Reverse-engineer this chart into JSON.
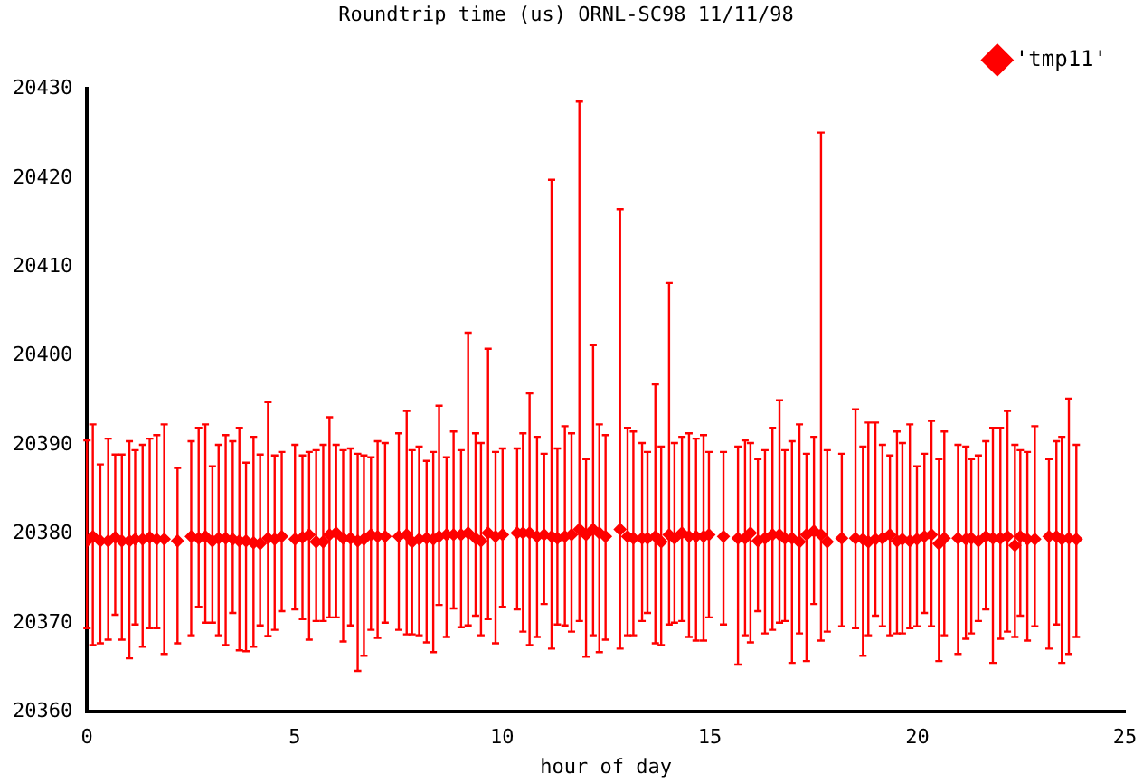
{
  "chart_data": {
    "type": "scatter",
    "title": "Roundtrip time (us) ORNL-SC98 11/11/98",
    "xlabel": "hour of day",
    "xlim": [
      0,
      25
    ],
    "xticks": [
      0,
      5,
      10,
      15,
      20,
      25
    ],
    "ylim": [
      20360,
      20430
    ],
    "yticks": [
      20360,
      20370,
      20380,
      20390,
      20400,
      20410,
      20420,
      20430
    ],
    "grid": false,
    "legend": "top right",
    "marker": "diamond",
    "series": [
      {
        "name": "'tmp11'",
        "color": "#ff0000",
        "x": [
          0.0,
          0.14,
          0.32,
          0.51,
          0.68,
          0.84,
          1.02,
          1.16,
          1.34,
          1.51,
          1.68,
          1.86,
          2.18,
          2.51,
          2.69,
          2.85,
          3.02,
          3.17,
          3.34,
          3.51,
          3.67,
          3.83,
          4.01,
          4.17,
          4.36,
          4.52,
          4.69,
          5.01,
          5.19,
          5.35,
          5.52,
          5.69,
          5.84,
          6.0,
          6.17,
          6.35,
          6.52,
          6.67,
          6.84,
          7.0,
          7.18,
          7.51,
          7.7,
          7.83,
          8.0,
          8.18,
          8.34,
          8.48,
          8.66,
          8.83,
          9.01,
          9.18,
          9.36,
          9.49,
          9.66,
          9.84,
          10.01,
          10.36,
          10.5,
          10.66,
          10.84,
          11.01,
          11.19,
          11.33,
          11.51,
          11.67,
          11.86,
          12.02,
          12.19,
          12.34,
          12.49,
          12.84,
          13.02,
          13.16,
          13.37,
          13.5,
          13.69,
          13.83,
          14.02,
          14.15,
          14.33,
          14.5,
          14.67,
          14.85,
          14.98,
          15.33,
          15.68,
          15.85,
          15.98,
          16.16,
          16.33,
          16.51,
          16.68,
          16.81,
          16.98,
          17.16,
          17.33,
          17.51,
          17.68,
          17.83,
          18.18,
          18.51,
          18.69,
          18.82,
          18.99,
          19.16,
          19.34,
          19.51,
          19.64,
          19.82,
          19.99,
          20.17,
          20.34,
          20.52,
          20.65,
          20.98,
          21.17,
          21.3,
          21.47,
          21.65,
          21.82,
          22.0,
          22.17,
          22.35,
          22.48,
          22.65,
          22.83,
          23.17,
          23.35,
          23.48,
          23.65,
          23.83
        ],
        "values": [
          20379.2,
          20379.7,
          20379.2,
          20379.2,
          20379.6,
          20379.2,
          20379.2,
          20379.4,
          20379.4,
          20379.6,
          20379.4,
          20379.4,
          20379.2,
          20379.7,
          20379.5,
          20379.7,
          20379.2,
          20379.5,
          20379.5,
          20379.4,
          20379.2,
          20379.2,
          20379.0,
          20378.9,
          20379.5,
          20379.4,
          20379.7,
          20379.4,
          20379.6,
          20379.9,
          20379.1,
          20379.1,
          20379.9,
          20380.1,
          20379.5,
          20379.5,
          20379.2,
          20379.4,
          20379.9,
          20379.7,
          20379.7,
          20379.7,
          20379.9,
          20379.1,
          20379.4,
          20379.5,
          20379.4,
          20379.7,
          20379.9,
          20379.9,
          20379.9,
          20380.1,
          20379.5,
          20379.2,
          20380.1,
          20379.7,
          20379.9,
          20380.1,
          20380.1,
          20380.1,
          20379.7,
          20379.9,
          20379.7,
          20379.5,
          20379.7,
          20379.9,
          20380.5,
          20379.9,
          20380.5,
          20380.1,
          20379.7,
          20380.5,
          20379.7,
          20379.5,
          20379.5,
          20379.5,
          20379.7,
          20379.1,
          20379.9,
          20379.5,
          20380.1,
          20379.7,
          20379.7,
          20379.7,
          20379.9,
          20379.7,
          20379.5,
          20379.5,
          20380.1,
          20379.2,
          20379.5,
          20379.9,
          20379.9,
          20379.5,
          20379.5,
          20379.1,
          20379.9,
          20380.3,
          20379.9,
          20379.1,
          20379.5,
          20379.5,
          20379.4,
          20379.1,
          20379.4,
          20379.5,
          20379.9,
          20379.2,
          20379.4,
          20379.2,
          20379.4,
          20379.7,
          20379.9,
          20378.9,
          20379.5,
          20379.5,
          20379.4,
          20379.5,
          20379.2,
          20379.7,
          20379.5,
          20379.5,
          20379.7,
          20378.7,
          20379.7,
          20379.4,
          20379.4,
          20379.7,
          20379.7,
          20379.4,
          20379.5,
          20379.4
        ],
        "errors": [
          [
            20369.4,
            20390.5
          ],
          [
            20367.5,
            20392.3
          ],
          [
            20367.7,
            20387.8
          ],
          [
            20368.1,
            20390.7
          ],
          [
            20370.9,
            20388.9
          ],
          [
            20368.1,
            20388.9
          ],
          [
            20366.0,
            20390.4
          ],
          [
            20369.8,
            20389.4
          ],
          [
            20367.3,
            20390.0
          ],
          [
            20369.4,
            20390.7
          ],
          [
            20369.4,
            20391.1
          ],
          [
            20366.5,
            20392.3
          ],
          [
            20367.7,
            20387.4
          ],
          [
            20368.6,
            20390.4
          ],
          [
            20371.8,
            20391.9
          ],
          [
            20370.0,
            20392.3
          ],
          [
            20370.0,
            20387.6
          ],
          [
            20368.6,
            20390.0
          ],
          [
            20367.5,
            20391.1
          ],
          [
            20371.1,
            20390.4
          ],
          [
            20366.9,
            20391.9
          ],
          [
            20366.8,
            20388.0
          ],
          [
            20367.3,
            20390.9
          ],
          [
            20369.7,
            20388.9
          ],
          [
            20368.5,
            20394.8
          ],
          [
            20369.2,
            20388.8
          ],
          [
            20371.3,
            20389.2
          ],
          [
            20371.5,
            20390.0
          ],
          [
            20370.4,
            20388.8
          ],
          [
            20368.1,
            20389.2
          ],
          [
            20370.2,
            20389.4
          ],
          [
            20370.2,
            20390.0
          ],
          [
            20370.6,
            20393.1
          ],
          [
            20370.6,
            20390.0
          ],
          [
            20367.9,
            20389.4
          ],
          [
            20369.7,
            20389.6
          ],
          [
            20364.6,
            20389.0
          ],
          [
            20366.3,
            20388.8
          ],
          [
            20369.2,
            20388.6
          ],
          [
            20368.3,
            20390.4
          ],
          [
            20370.0,
            20390.2
          ],
          [
            20369.2,
            20391.3
          ],
          [
            20368.7,
            20393.8
          ],
          [
            20368.7,
            20389.4
          ],
          [
            20368.6,
            20389.8
          ],
          [
            20367.8,
            20388.2
          ],
          [
            20366.7,
            20389.2
          ],
          [
            20372.0,
            20394.4
          ],
          [
            20368.4,
            20388.6
          ],
          [
            20371.6,
            20391.5
          ],
          [
            20369.5,
            20389.4
          ],
          [
            20369.7,
            20402.6
          ],
          [
            20370.8,
            20391.3
          ],
          [
            20368.6,
            20390.2
          ],
          [
            20370.4,
            20400.8
          ],
          [
            20367.7,
            20389.2
          ],
          [
            20371.8,
            20389.6
          ],
          [
            20371.5,
            20389.6
          ],
          [
            20369.0,
            20391.3
          ],
          [
            20367.5,
            20395.8
          ],
          [
            20368.4,
            20390.9
          ],
          [
            20372.1,
            20389.0
          ],
          [
            20367.1,
            20419.8
          ],
          [
            20369.8,
            20389.6
          ],
          [
            20369.7,
            20392.1
          ],
          [
            20369.0,
            20391.3
          ],
          [
            20370.2,
            20428.6
          ],
          [
            20366.2,
            20388.4
          ],
          [
            20368.6,
            20401.2
          ],
          [
            20366.7,
            20392.3
          ],
          [
            20368.1,
            20391.1
          ],
          [
            20367.1,
            20416.5
          ],
          [
            20368.6,
            20391.9
          ],
          [
            20368.6,
            20391.5
          ],
          [
            20370.2,
            20390.2
          ],
          [
            20371.1,
            20389.2
          ],
          [
            20367.7,
            20396.8
          ],
          [
            20367.5,
            20389.8
          ],
          [
            20369.8,
            20408.2
          ],
          [
            20370.0,
            20390.2
          ],
          [
            20370.2,
            20390.9
          ],
          [
            20368.4,
            20391.3
          ],
          [
            20368.0,
            20390.7
          ],
          [
            20368.0,
            20391.1
          ],
          [
            20370.6,
            20389.2
          ],
          [
            20369.8,
            20389.2
          ],
          [
            20365.3,
            20389.8
          ],
          [
            20368.6,
            20390.5
          ],
          [
            20367.8,
            20390.2
          ],
          [
            20371.3,
            20388.4
          ],
          [
            20368.8,
            20389.4
          ],
          [
            20369.2,
            20391.9
          ],
          [
            20370.0,
            20395.0
          ],
          [
            20370.2,
            20389.4
          ],
          [
            20365.5,
            20390.4
          ],
          [
            20368.8,
            20392.3
          ],
          [
            20365.7,
            20389.0
          ],
          [
            20372.1,
            20390.9
          ],
          [
            20368.0,
            20425.1
          ],
          [
            20369.0,
            20389.4
          ],
          [
            20369.6,
            20389.0
          ],
          [
            20369.4,
            20394.0
          ],
          [
            20366.3,
            20389.8
          ],
          [
            20368.6,
            20392.5
          ],
          [
            20370.8,
            20392.5
          ],
          [
            20369.6,
            20390.0
          ],
          [
            20368.6,
            20388.8
          ],
          [
            20368.8,
            20391.5
          ],
          [
            20368.8,
            20390.2
          ],
          [
            20369.4,
            20392.3
          ],
          [
            20369.6,
            20387.6
          ],
          [
            20371.1,
            20389.0
          ],
          [
            20369.6,
            20392.7
          ],
          [
            20365.7,
            20388.4
          ],
          [
            20368.6,
            20391.5
          ],
          [
            20366.5,
            20390.0
          ],
          [
            20368.2,
            20389.8
          ],
          [
            20368.8,
            20388.4
          ],
          [
            20370.2,
            20388.8
          ],
          [
            20371.5,
            20390.4
          ],
          [
            20365.5,
            20391.9
          ],
          [
            20368.2,
            20391.9
          ],
          [
            20369.0,
            20393.8
          ],
          [
            20368.4,
            20390.0
          ],
          [
            20370.8,
            20389.4
          ],
          [
            20368.0,
            20389.2
          ],
          [
            20369.6,
            20392.1
          ],
          [
            20367.1,
            20388.4
          ],
          [
            20369.8,
            20390.4
          ],
          [
            20365.5,
            20390.9
          ],
          [
            20366.5,
            20395.2
          ],
          [
            20368.4,
            20390.0
          ]
        ]
      }
    ]
  }
}
